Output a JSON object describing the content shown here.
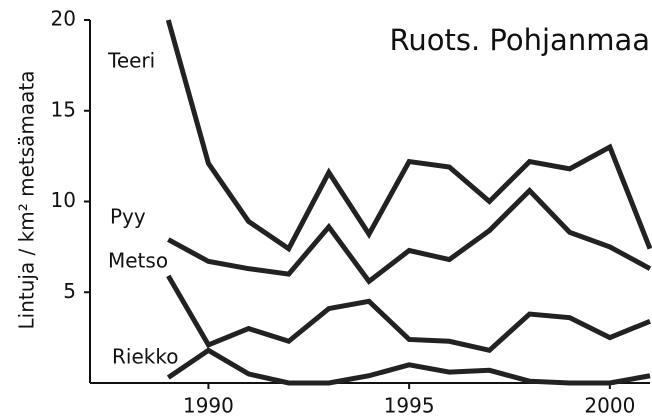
{
  "chart_data": {
    "type": "line",
    "title": "Ruots. Pohjanmaa",
    "y_label": "Lintuja / km² metsämaata",
    "x": [
      1989,
      1990,
      1991,
      1992,
      1993,
      1994,
      1995,
      1996,
      1997,
      1998,
      1999,
      2000,
      2001
    ],
    "series": [
      {
        "name": "Teeri",
        "color": "#222222",
        "values": [
          20,
          12.1,
          8.9,
          7.4,
          11.6,
          8.2,
          12.2,
          11.9,
          10,
          12.2,
          11.8,
          13,
          7.4
        ]
      },
      {
        "name": "Pyy",
        "color": "#222222",
        "values": [
          7.9,
          6.7,
          6.3,
          6.0,
          8.6,
          5.6,
          7.3,
          6.8,
          8.4,
          10.6,
          8.3,
          7.5,
          6.3
        ]
      },
      {
        "name": "Metso",
        "color": "#222222",
        "values": [
          5.9,
          2.1,
          3.0,
          2.3,
          4.1,
          4.5,
          2.4,
          2.3,
          1.8,
          3.8,
          3.6,
          2.5,
          3.4
        ]
      },
      {
        "name": "Riekko",
        "color": "#222222",
        "values": [
          0.3,
          1.8,
          0.5,
          0,
          0,
          0.4,
          1.0,
          0.6,
          0.7,
          0.1,
          0,
          0,
          0.4
        ]
      }
    ],
    "xlim": [
      1987,
      2001
    ],
    "xticks": [
      1990,
      1995,
      2000
    ],
    "ylim": [
      0,
      20
    ],
    "yticks": [
      5,
      10,
      15,
      20
    ],
    "grid": false
  }
}
